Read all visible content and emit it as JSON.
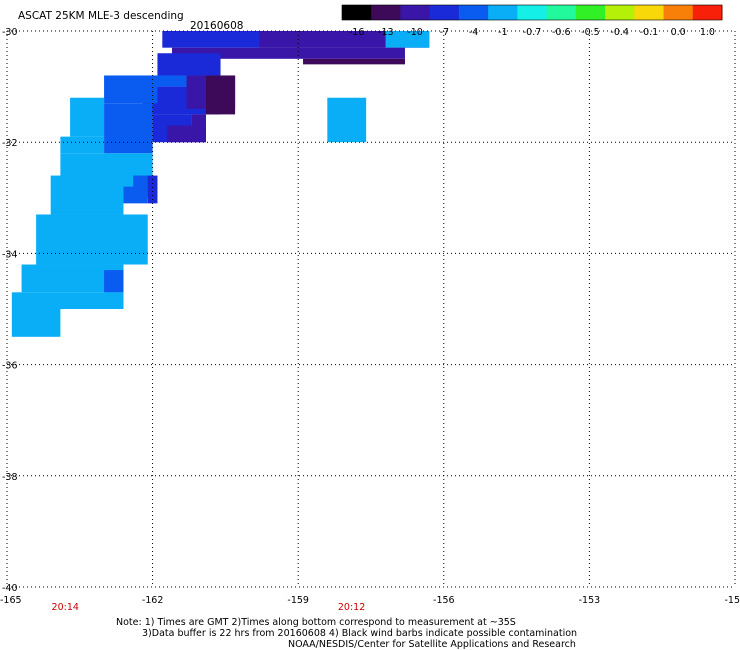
{
  "chart_data": {
    "type": "heatmap",
    "title": "ASCAT 25KM MLE-3 descending",
    "date_label": "20160608",
    "x_ticks": [
      "-165",
      "-162",
      "-159",
      "-156",
      "-153",
      "-15"
    ],
    "y_ticks": [
      "-30",
      "-32",
      "-34",
      "-36",
      "-38",
      "-40"
    ],
    "xlim": [
      -165,
      -150
    ],
    "ylim": [
      -40,
      -30
    ],
    "grid": true,
    "colorbar": {
      "labels": [
        "-16",
        "-13",
        "-10",
        "-7",
        "-4",
        "-1",
        "-0.7",
        "-0.6",
        "-0.5",
        "-0.4",
        "-0.1",
        "0.0",
        "1.0"
      ],
      "colors": [
        "#000000",
        "#3c0a58",
        "#3a16a8",
        "#1a2ad8",
        "#0a5cf0",
        "#0aaef6",
        "#14f0e8",
        "#22f89c",
        "#32f026",
        "#b4f008",
        "#f8d808",
        "#f88008",
        "#f82008"
      ]
    },
    "time_labels": [
      {
        "text": "20:14",
        "lon": -163.8
      },
      {
        "text": "20:12",
        "lon": -157.9
      }
    ],
    "cells": [
      {
        "lon0": -161.8,
        "lon1": -156.3,
        "lat0": -30.3,
        "lat1": -30.0,
        "value": -7
      },
      {
        "lon0": -159.8,
        "lon1": -157.2,
        "lat0": -30.3,
        "lat1": -30.0,
        "value": -10
      },
      {
        "lon0": -157.2,
        "lon1": -156.3,
        "lat0": -30.3,
        "lat1": -30.0,
        "value": -1
      },
      {
        "lon0": -161.6,
        "lon1": -156.8,
        "lat0": -30.5,
        "lat1": -30.3,
        "value": -10
      },
      {
        "lon0": -158.9,
        "lon1": -156.8,
        "lat0": -30.6,
        "lat1": -30.5,
        "value": -13
      },
      {
        "lon0": -161.9,
        "lon1": -160.6,
        "lat0": -30.8,
        "lat1": -30.4,
        "value": -7
      },
      {
        "lon0": -162.9,
        "lon1": -160.6,
        "lat0": -31.0,
        "lat1": -30.8,
        "value": -4
      },
      {
        "lon0": -162.2,
        "lon1": -160.6,
        "lat0": -31.5,
        "lat1": -31.0,
        "value": -7
      },
      {
        "lon0": -161.3,
        "lon1": -160.3,
        "lat0": -31.4,
        "lat1": -30.8,
        "value": -10
      },
      {
        "lon0": -160.9,
        "lon1": -160.3,
        "lat0": -31.5,
        "lat1": -30.8,
        "value": -13
      },
      {
        "lon0": -163.0,
        "lon1": -161.9,
        "lat0": -31.3,
        "lat1": -30.8,
        "value": -4
      },
      {
        "lon0": -163.7,
        "lon1": -163.0,
        "lat0": -31.9,
        "lat1": -31.2,
        "value": -1
      },
      {
        "lon0": -163.0,
        "lon1": -162.0,
        "lat0": -32.2,
        "lat1": -31.3,
        "value": -4
      },
      {
        "lon0": -162.0,
        "lon1": -161.2,
        "lat0": -32.0,
        "lat1": -31.5,
        "value": -7
      },
      {
        "lon0": -161.2,
        "lon1": -160.9,
        "lat0": -32.0,
        "lat1": -31.5,
        "value": -10
      },
      {
        "lon0": -161.7,
        "lon1": -160.9,
        "lat0": -32.0,
        "lat1": -31.7,
        "value": -10
      },
      {
        "lon0": -163.9,
        "lon1": -163.0,
        "lat0": -32.2,
        "lat1": -31.9,
        "value": -1
      },
      {
        "lon0": -163.9,
        "lon1": -162.0,
        "lat0": -32.9,
        "lat1": -32.2,
        "value": -1
      },
      {
        "lon0": -162.4,
        "lon1": -162.0,
        "lat0": -33.0,
        "lat1": -32.6,
        "value": -4
      },
      {
        "lon0": -162.1,
        "lon1": -161.9,
        "lat0": -33.1,
        "lat1": -32.6,
        "value": -7
      },
      {
        "lon0": -162.6,
        "lon1": -162.1,
        "lat0": -33.1,
        "lat1": -32.8,
        "value": -4
      },
      {
        "lon0": -164.1,
        "lon1": -162.6,
        "lat0": -33.3,
        "lat1": -32.6,
        "value": -1
      },
      {
        "lon0": -164.4,
        "lon1": -162.1,
        "lat0": -34.2,
        "lat1": -33.3,
        "value": -1
      },
      {
        "lon0": -164.7,
        "lon1": -162.6,
        "lat0": -34.7,
        "lat1": -34.2,
        "value": -1
      },
      {
        "lon0": -163.0,
        "lon1": -162.6,
        "lat0": -34.7,
        "lat1": -34.3,
        "value": -4
      },
      {
        "lon0": -164.9,
        "lon1": -162.6,
        "lat0": -35.0,
        "lat1": -34.7,
        "value": -1
      },
      {
        "lon0": -164.9,
        "lon1": -163.9,
        "lat0": -35.5,
        "lat1": -35.0,
        "value": -1
      },
      {
        "lon0": -158.4,
        "lon1": -157.6,
        "lat0": -32.0,
        "lat1": -31.2,
        "value": -1
      }
    ]
  },
  "notes": {
    "line1": "Note: 1) Times are GMT 2)Times along bottom correspond to measurement at ~35S",
    "line2": "3)Data buffer is 22 hrs from 20160608 4) Black wind barbs indicate possible contamination",
    "line3": "NOAA/NESDIS/Center for Satellite Applications and Research"
  }
}
